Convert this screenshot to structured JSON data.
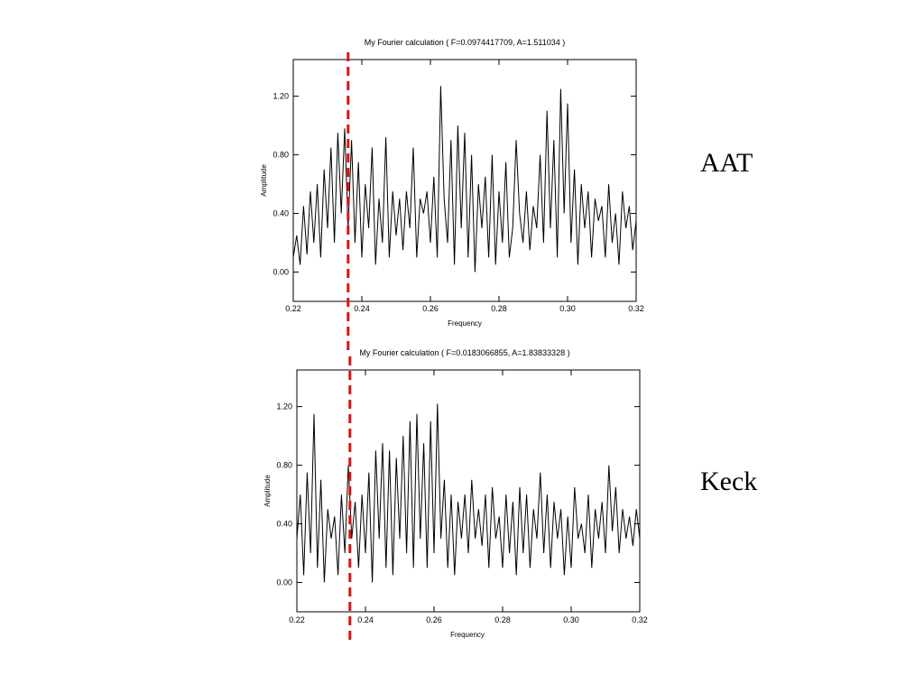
{
  "colors": {
    "line": "#000000",
    "marker": "#dd1111",
    "background": "#ffffff"
  },
  "marker_frequency": 0.236,
  "labels": {
    "aat": "AAT",
    "keck": "Keck"
  },
  "chart_data": [
    {
      "type": "line",
      "title": "My Fourier calculation ( F=0.0974417709, A=1.511034 )",
      "xlabel": "Frequency",
      "ylabel": "Amplitude",
      "xlim": [
        0.22,
        0.32
      ],
      "ylim": [
        -0.2,
        1.45
      ],
      "xticks": [
        "0.22",
        "0.24",
        "0.26",
        "0.28",
        "0.30",
        "0.32"
      ],
      "yticks": [
        "0.00",
        "0.40",
        "0.80",
        "1.20"
      ],
      "ytick_values": [
        0.0,
        0.4,
        0.8,
        1.2
      ],
      "series": [
        {
          "x": [
            0.22,
            0.221,
            0.222,
            0.223,
            0.224,
            0.225,
            0.226,
            0.227,
            0.228,
            0.229,
            0.23,
            0.231,
            0.232,
            0.233,
            0.234,
            0.235,
            0.236,
            0.237,
            0.238,
            0.239,
            0.24,
            0.241,
            0.242,
            0.243,
            0.244,
            0.245,
            0.246,
            0.247,
            0.248,
            0.249,
            0.25,
            0.251,
            0.252,
            0.253,
            0.254,
            0.255,
            0.256,
            0.257,
            0.258,
            0.259,
            0.26,
            0.261,
            0.262,
            0.263,
            0.264,
            0.265,
            0.266,
            0.267,
            0.268,
            0.269,
            0.27,
            0.271,
            0.272,
            0.273,
            0.274,
            0.275,
            0.276,
            0.277,
            0.278,
            0.279,
            0.28,
            0.281,
            0.282,
            0.283,
            0.284,
            0.285,
            0.286,
            0.287,
            0.288,
            0.289,
            0.29,
            0.291,
            0.292,
            0.293,
            0.294,
            0.295,
            0.296,
            0.297,
            0.298,
            0.299,
            0.3,
            0.301,
            0.302,
            0.303,
            0.304,
            0.305,
            0.306,
            0.307,
            0.308,
            0.309,
            0.31,
            0.311,
            0.312,
            0.313,
            0.314,
            0.315,
            0.316,
            0.317,
            0.318,
            0.319,
            0.32
          ],
          "values": [
            0.1,
            0.25,
            0.05,
            0.45,
            0.12,
            0.55,
            0.2,
            0.6,
            0.1,
            0.7,
            0.3,
            0.85,
            0.2,
            0.95,
            0.4,
            0.98,
            0.3,
            0.9,
            0.2,
            0.75,
            0.1,
            0.6,
            0.3,
            0.85,
            0.05,
            0.5,
            0.2,
            0.92,
            0.1,
            0.55,
            0.25,
            0.5,
            0.15,
            0.55,
            0.3,
            0.85,
            0.1,
            0.5,
            0.4,
            0.55,
            0.2,
            0.65,
            0.1,
            1.27,
            0.5,
            0.2,
            0.9,
            0.05,
            1.0,
            0.3,
            0.95,
            0.1,
            0.8,
            0.0,
            0.6,
            0.3,
            0.65,
            0.1,
            0.8,
            0.05,
            0.55,
            0.2,
            0.75,
            0.1,
            0.3,
            0.9,
            0.4,
            0.2,
            0.55,
            0.15,
            0.45,
            0.3,
            0.8,
            0.2,
            1.1,
            0.3,
            0.9,
            0.1,
            1.25,
            0.4,
            1.15,
            0.2,
            0.7,
            0.05,
            0.6,
            0.3,
            0.55,
            0.1,
            0.5,
            0.35,
            0.45,
            0.1,
            0.6,
            0.2,
            0.4,
            0.05,
            0.55,
            0.3,
            0.45,
            0.15,
            0.35
          ]
        }
      ]
    },
    {
      "type": "line",
      "title": "My Fourier calculation ( F=0.0183066855, A=1.83833328 )",
      "xlabel": "Frequency",
      "ylabel": "Amplitude",
      "xlim": [
        0.22,
        0.32
      ],
      "ylim": [
        -0.2,
        1.45
      ],
      "xticks": [
        "0.22",
        "0.24",
        "0.26",
        "0.28",
        "0.30",
        "0.32"
      ],
      "yticks": [
        "0.00",
        "0.40",
        "0.80",
        "1.20"
      ],
      "ytick_values": [
        0.0,
        0.4,
        0.8,
        1.2
      ],
      "series": [
        {
          "x": [
            0.22,
            0.221,
            0.222,
            0.223,
            0.224,
            0.225,
            0.226,
            0.227,
            0.228,
            0.229,
            0.23,
            0.231,
            0.232,
            0.233,
            0.234,
            0.235,
            0.236,
            0.237,
            0.238,
            0.239,
            0.24,
            0.241,
            0.242,
            0.243,
            0.244,
            0.245,
            0.246,
            0.247,
            0.248,
            0.249,
            0.25,
            0.251,
            0.252,
            0.253,
            0.254,
            0.255,
            0.256,
            0.257,
            0.258,
            0.259,
            0.26,
            0.261,
            0.262,
            0.263,
            0.264,
            0.265,
            0.266,
            0.267,
            0.268,
            0.269,
            0.27,
            0.271,
            0.272,
            0.273,
            0.274,
            0.275,
            0.276,
            0.277,
            0.278,
            0.279,
            0.28,
            0.281,
            0.282,
            0.283,
            0.284,
            0.285,
            0.286,
            0.287,
            0.288,
            0.289,
            0.29,
            0.291,
            0.292,
            0.293,
            0.294,
            0.295,
            0.296,
            0.297,
            0.298,
            0.299,
            0.3,
            0.301,
            0.302,
            0.303,
            0.304,
            0.305,
            0.306,
            0.307,
            0.308,
            0.309,
            0.31,
            0.311,
            0.312,
            0.313,
            0.314,
            0.315,
            0.316,
            0.317,
            0.318,
            0.319,
            0.32
          ],
          "values": [
            0.3,
            0.6,
            0.05,
            0.75,
            0.2,
            1.15,
            0.1,
            0.7,
            0.0,
            0.5,
            0.3,
            0.45,
            0.05,
            0.6,
            0.2,
            0.8,
            0.3,
            0.55,
            0.1,
            0.6,
            0.2,
            0.75,
            0.0,
            0.9,
            0.3,
            0.95,
            0.1,
            0.9,
            0.05,
            0.85,
            0.3,
            1.0,
            0.2,
            1.1,
            0.1,
            1.15,
            0.3,
            0.95,
            0.1,
            1.1,
            0.2,
            1.22,
            0.3,
            0.7,
            0.1,
            0.6,
            0.05,
            0.55,
            0.3,
            0.6,
            0.2,
            0.7,
            0.3,
            0.5,
            0.25,
            0.6,
            0.1,
            0.65,
            0.3,
            0.45,
            0.1,
            0.6,
            0.2,
            0.55,
            0.05,
            0.65,
            0.2,
            0.6,
            0.1,
            0.5,
            0.3,
            0.75,
            0.2,
            0.6,
            0.1,
            0.55,
            0.3,
            0.5,
            0.05,
            0.45,
            0.1,
            0.65,
            0.3,
            0.4,
            0.2,
            0.6,
            0.1,
            0.5,
            0.3,
            0.55,
            0.2,
            0.8,
            0.35,
            0.65,
            0.2,
            0.5,
            0.3,
            0.45,
            0.25,
            0.5,
            0.3
          ]
        }
      ]
    }
  ]
}
